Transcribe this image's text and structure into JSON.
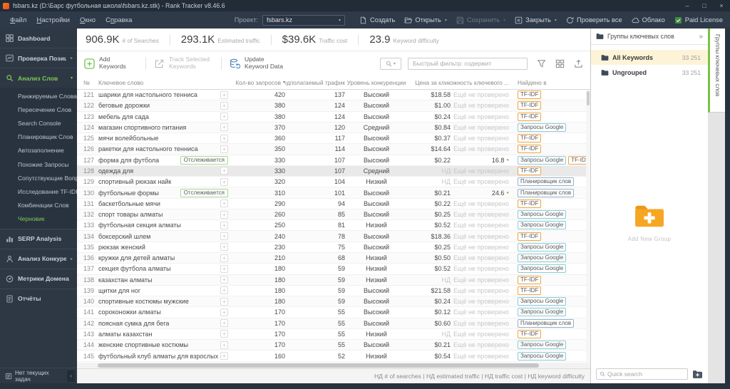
{
  "window": {
    "title": "fsbars.kz (D:\\Барс футбольная школа\\fsbars.kz.stk) - Rank Tracker v8.46.6",
    "controls": {
      "minimize": "–",
      "maximize": "□",
      "close": "×"
    }
  },
  "menubar": {
    "items": [
      {
        "label": "Файл",
        "u": 0
      },
      {
        "label": "Настройки",
        "u": 0
      },
      {
        "label": "Окно",
        "u": 0
      },
      {
        "label": "Справка",
        "u": 1
      }
    ],
    "project_label": "Проект:",
    "project_value": "fsbars.kz",
    "actions": [
      {
        "label": "Создать",
        "icon": "new-doc-icon",
        "enabled": true,
        "dropdown": false
      },
      {
        "label": "Открыть",
        "icon": "open-folder-icon",
        "enabled": true,
        "dropdown": true
      },
      {
        "label": "Сохранить",
        "icon": "save-icon",
        "enabled": false,
        "dropdown": true
      },
      {
        "label": "Закрыть",
        "icon": "close-project-icon",
        "enabled": true,
        "dropdown": true
      },
      {
        "label": "Проверить все",
        "icon": "refresh-icon",
        "enabled": true,
        "dropdown": false
      },
      {
        "label": "Облако",
        "icon": "cloud-icon",
        "enabled": true,
        "dropdown": false
      },
      {
        "label": "Paid License",
        "icon": "license-icon",
        "enabled": true,
        "dropdown": false
      }
    ]
  },
  "sidebar": {
    "items": [
      {
        "label": "Dashboard",
        "icon": "dashboard-icon"
      },
      {
        "label": "Проверка Позиций",
        "icon": "positions-icon",
        "chevron": "right"
      },
      {
        "label": "Анализ Слов",
        "icon": "keyword-search-icon",
        "chevron": "down",
        "active": true
      }
    ],
    "submenu": [
      {
        "label": "Ранжируемые Слова"
      },
      {
        "label": "Пересечение Слов"
      },
      {
        "label": "Search Console"
      },
      {
        "label": "Планировщик Слов"
      },
      {
        "label": "Автозаполнение"
      },
      {
        "label": "Похожие Запросы"
      },
      {
        "label": "Сопутствующие Вопросы"
      },
      {
        "label": "Исследование TF-IDF"
      },
      {
        "label": "Комбинации Слов"
      },
      {
        "label": "Черновик",
        "active": true
      }
    ],
    "items2": [
      {
        "label": "SERP Analysis",
        "icon": "serp-icon"
      },
      {
        "label": "Анализ Конкурентов",
        "icon": "competitors-icon",
        "chevron": "right"
      },
      {
        "label": "Метрики Домена",
        "icon": "domain-metrics-icon"
      },
      {
        "label": "Отчёты",
        "icon": "reports-icon"
      }
    ],
    "footer": {
      "label": "Нет текущих задач"
    }
  },
  "stats": [
    {
      "value": "906.9K",
      "label": "# of Searches"
    },
    {
      "value": "293.1K",
      "label": "Estimated traffic"
    },
    {
      "value": "$39.6K",
      "label": "Traffic cost"
    },
    {
      "value": "23.9",
      "label": "Keyword difficulty"
    }
  ],
  "toolbar": {
    "add_keywords": "Add Keywords",
    "track_selected": "Track Selected Keywords",
    "update_data": "Update Keyword Data",
    "filter_placeholder": "Быстрый фильтр: содержит"
  },
  "table": {
    "columns": [
      {
        "label": "№"
      },
      {
        "label": "Ключевое слово"
      },
      {
        "label": "Кол-во запросов",
        "sorted": true
      },
      {
        "label": "Предполагаемый трафик"
      },
      {
        "label": "Уровень конкуренции"
      },
      {
        "label": "Цена за клик"
      },
      {
        "label": "Сложность ключевого ..."
      },
      {
        "label": "Найдено в"
      }
    ],
    "tracked_badge": "Отслеживается",
    "unchecked_text": "Ещё не проверено",
    "nd_text": "НД",
    "badge_colors": {
      "TF-IDF": "#f2a33c",
      "Запросы Google": "#85ccd8",
      "Планировщик слов": "#93b1cc"
    },
    "rows": [
      {
        "num": 121,
        "keyword": "шарики для настольного тенниса",
        "volume": 420,
        "traffic": 137,
        "competition": "Высокий",
        "cpc": "$18.58",
        "difficulty_state": "nc",
        "sources": [
          "TF-IDF"
        ]
      },
      {
        "num": 122,
        "keyword": "беговые дорожки",
        "volume": 380,
        "traffic": 124,
        "competition": "Высокий",
        "cpc": "$1.00",
        "difficulty_state": "nc",
        "sources": [
          "TF-IDF"
        ]
      },
      {
        "num": 123,
        "keyword": "мебель для сада",
        "volume": 380,
        "traffic": 124,
        "competition": "Высокий",
        "cpc": "$0.24",
        "difficulty_state": "nc",
        "sources": [
          "TF-IDF"
        ]
      },
      {
        "num": 124,
        "keyword": "магазин спортивного питания",
        "volume": 370,
        "traffic": 120,
        "competition": "Средний",
        "cpc": "$0.84",
        "difficulty_state": "nc",
        "sources": [
          "Запросы Google"
        ]
      },
      {
        "num": 125,
        "keyword": "мячи волейбольные",
        "volume": 360,
        "traffic": 117,
        "competition": "Высокий",
        "cpc": "$0.37",
        "difficulty_state": "nc",
        "sources": [
          "TF-IDF"
        ]
      },
      {
        "num": 126,
        "keyword": "ракетки для настольного тенниса",
        "volume": 350,
        "traffic": 114,
        "competition": "Высокий",
        "cpc": "$14.64",
        "difficulty_state": "nc",
        "sources": [
          "TF-IDF"
        ]
      },
      {
        "num": 127,
        "keyword": "форма для футбола",
        "tracked": true,
        "volume": 330,
        "traffic": 107,
        "competition": "Высокий",
        "cpc": "$0.22",
        "difficulty": "16.8",
        "difficulty_state": "ok",
        "sources": [
          "Запросы Google",
          "TF-IDF"
        ]
      },
      {
        "num": 128,
        "keyword": "одежда для",
        "selected": true,
        "volume": 330,
        "traffic": 107,
        "competition": "Средний",
        "cpc": "НД",
        "difficulty_state": "nc",
        "chart_icon": true,
        "sources": [
          "TF-IDF"
        ]
      },
      {
        "num": 129,
        "keyword": "спортивный рюкзак найк",
        "volume": 320,
        "traffic": 104,
        "competition": "Низкий",
        "cpc": "НД",
        "difficulty_state": "nc",
        "sources": [
          "Планировщик слов"
        ]
      },
      {
        "num": 130,
        "keyword": "футбольные формы",
        "tracked": true,
        "volume": 310,
        "traffic": 101,
        "competition": "Высокий",
        "cpc": "$0.21",
        "difficulty": "24.6",
        "difficulty_state": "ok",
        "sources": [
          "Планировщик слов"
        ]
      },
      {
        "num": 131,
        "keyword": "баскетбольные мячи",
        "volume": 290,
        "traffic": 94,
        "competition": "Высокий",
        "cpc": "$0.22",
        "difficulty_state": "nc",
        "sources": [
          "TF-IDF"
        ]
      },
      {
        "num": 132,
        "keyword": "спорт товары алматы",
        "volume": 260,
        "traffic": 85,
        "competition": "Высокий",
        "cpc": "$0.25",
        "difficulty_state": "nc",
        "sources": [
          "Запросы Google"
        ]
      },
      {
        "num": 133,
        "keyword": "футбольная секция алматы",
        "volume": 250,
        "traffic": 81,
        "competition": "Низкий",
        "cpc": "$0.52",
        "difficulty_state": "nc",
        "sources": [
          "Запросы Google"
        ]
      },
      {
        "num": 134,
        "keyword": "боксерский шлем",
        "volume": 240,
        "traffic": 78,
        "competition": "Высокий",
        "cpc": "$18.36",
        "difficulty_state": "nc",
        "sources": [
          "TF-IDF"
        ]
      },
      {
        "num": 135,
        "keyword": "рюкзак женский",
        "volume": 230,
        "traffic": 75,
        "competition": "Высокий",
        "cpc": "$0.25",
        "difficulty_state": "nc",
        "sources": [
          "Запросы Google"
        ]
      },
      {
        "num": 136,
        "keyword": "кружки для детей алматы",
        "volume": 210,
        "traffic": 68,
        "competition": "Низкий",
        "cpc": "$0.50",
        "difficulty_state": "nc",
        "sources": [
          "Запросы Google"
        ]
      },
      {
        "num": 137,
        "keyword": "секция футбола алматы",
        "volume": 180,
        "traffic": 59,
        "competition": "Низкий",
        "cpc": "$0.52",
        "difficulty_state": "nc",
        "sources": [
          "Запросы Google"
        ]
      },
      {
        "num": 138,
        "keyword": "казахстан алматы",
        "volume": 180,
        "traffic": 59,
        "competition": "Низкий",
        "cpc": "НД",
        "difficulty_state": "nc",
        "sources": [
          "TF-IDF"
        ]
      },
      {
        "num": 139,
        "keyword": "щитки для ног",
        "volume": 180,
        "traffic": 59,
        "competition": "Высокий",
        "cpc": "$21.58",
        "difficulty_state": "nc",
        "sources": [
          "TF-IDF"
        ]
      },
      {
        "num": 140,
        "keyword": "спортивные костюмы мужские",
        "volume": 180,
        "traffic": 59,
        "competition": "Высокий",
        "cpc": "$0.24",
        "difficulty_state": "nc",
        "sources": [
          "Запросы Google"
        ]
      },
      {
        "num": 141,
        "keyword": "сороконожки алматы",
        "volume": 170,
        "traffic": 55,
        "competition": "Высокий",
        "cpc": "$0.12",
        "difficulty_state": "nc",
        "sources": [
          "Запросы Google"
        ]
      },
      {
        "num": 142,
        "keyword": "поясная сумка для бега",
        "volume": 170,
        "traffic": 55,
        "competition": "Высокий",
        "cpc": "$0.60",
        "difficulty_state": "nc",
        "sources": [
          "Планировщик слов"
        ]
      },
      {
        "num": 143,
        "keyword": "алматы казахстан",
        "volume": 170,
        "traffic": 55,
        "competition": "Низкий",
        "cpc": "НД",
        "difficulty_state": "nc",
        "sources": [
          "TF-IDF"
        ]
      },
      {
        "num": 144,
        "keyword": "женские спортивные костюмы",
        "volume": 170,
        "traffic": 55,
        "competition": "Высокий",
        "cpc": "$0.21",
        "difficulty_state": "nc",
        "sources": [
          "Запросы Google"
        ]
      },
      {
        "num": 145,
        "keyword": "футбольный клуб алматы для взрослых",
        "volume": 160,
        "traffic": 52,
        "competition": "Низкий",
        "cpc": "$0.54",
        "difficulty_state": "nc",
        "sources": [
          "Запросы Google"
        ]
      }
    ]
  },
  "status_bar": {
    "text": "НД # of searches | НД estimated traffic | НД traffic cost | НД keyword difficulty"
  },
  "right_panel": {
    "title": "Группы ключевых слов",
    "groups": [
      {
        "label": "All Keywords",
        "count": "33 251",
        "selected": true
      },
      {
        "label": "Ungrouped",
        "count": "33 251",
        "selected": false
      }
    ],
    "add_group_label": "Add New Group",
    "quick_search_placeholder": "Quick search",
    "vertical_tab": "Группы ключевых слов"
  }
}
